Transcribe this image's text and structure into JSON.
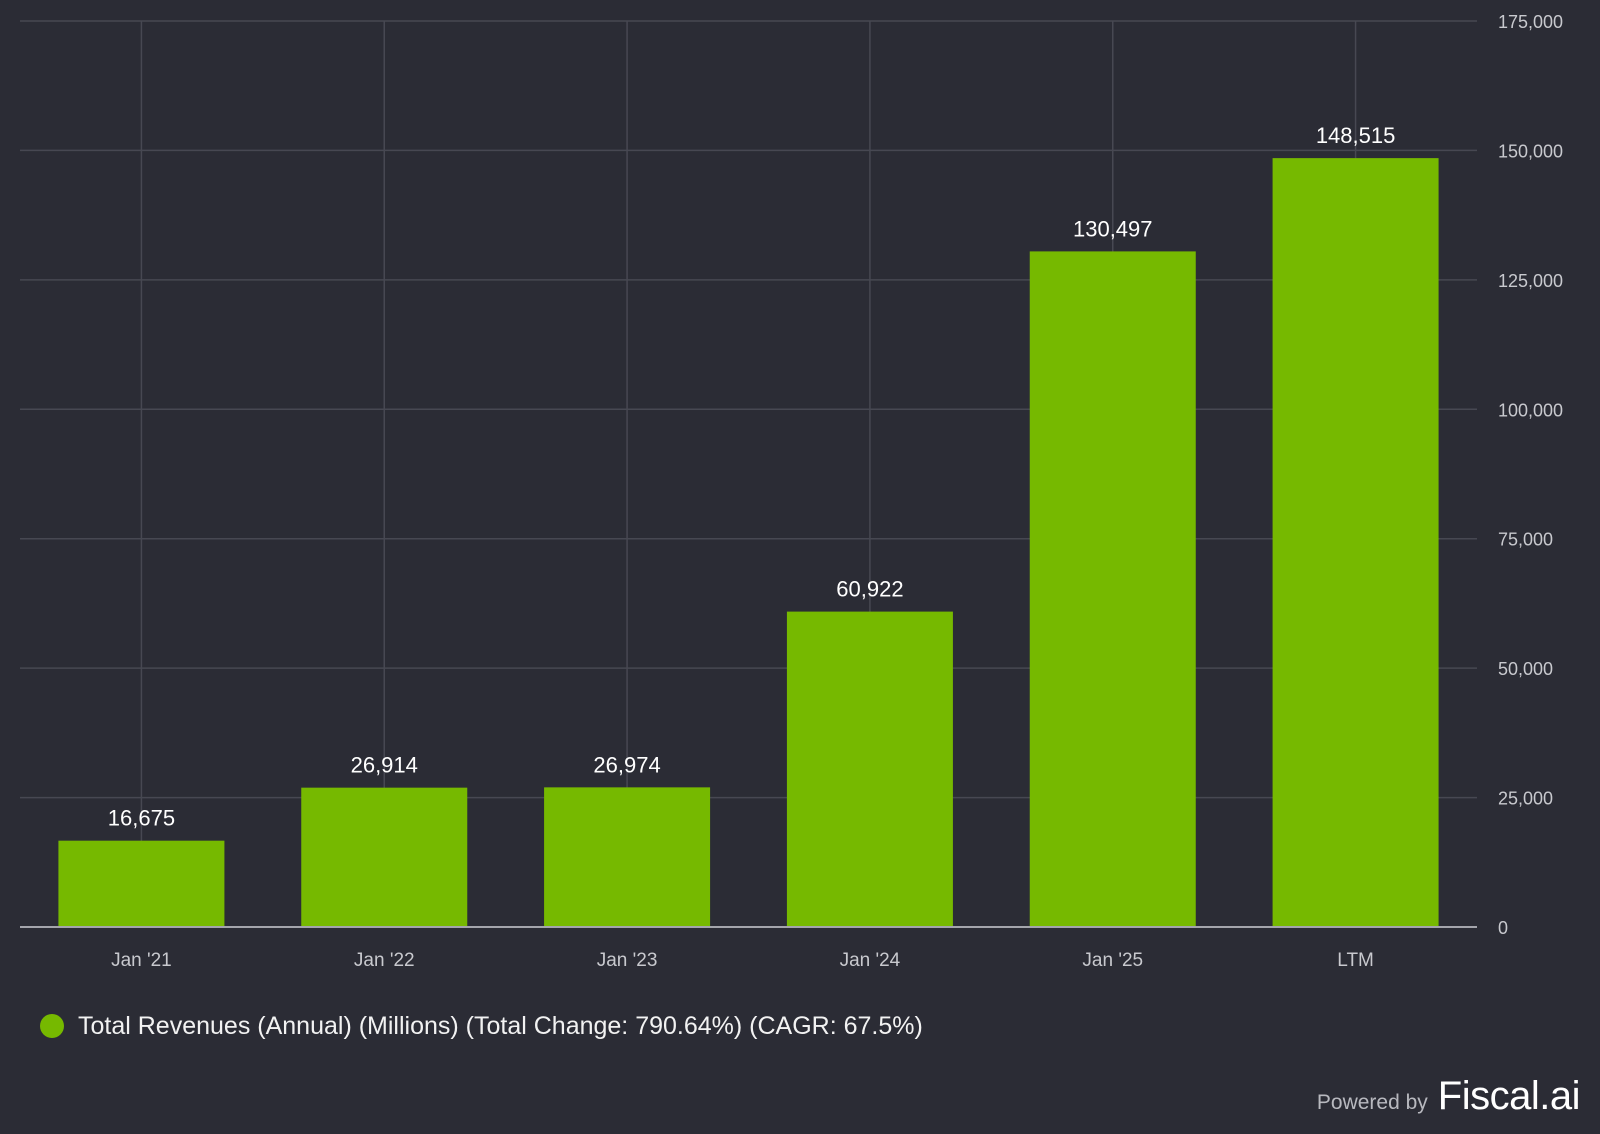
{
  "chart_data": {
    "type": "bar",
    "categories": [
      "Jan '21",
      "Jan '22",
      "Jan '23",
      "Jan '24",
      "Jan '25",
      "LTM"
    ],
    "values": [
      16675,
      26914,
      26974,
      60922,
      130497,
      148515
    ],
    "data_labels": [
      "16,675",
      "26,914",
      "26,974",
      "60,922",
      "130,497",
      "148,515"
    ],
    "yticks": [
      0,
      25000,
      50000,
      75000,
      100000,
      125000,
      150000,
      175000
    ],
    "ytick_labels": [
      "0",
      "25,000",
      "50,000",
      "75,000",
      "100,000",
      "125,000",
      "150,000",
      "175,000"
    ],
    "ylim": [
      0,
      175000
    ],
    "y_axis_side": "right",
    "grid": true,
    "xlabel": "",
    "ylabel": "",
    "series_name": "Total Revenues (Annual) (Millions) (Total Change: 790.64%) (CAGR: 67.5%)",
    "legend_position": "bottom-left"
  },
  "legend": {
    "label": "Total Revenues (Annual) (Millions) (Total Change: 790.64%) (CAGR: 67.5%)"
  },
  "credit": {
    "prefix": "Powered by",
    "brand": "Fiscal.ai"
  },
  "colors": {
    "background": "#2b2c35",
    "bar": "#76b900",
    "grid": "#474852",
    "axis": "#a4a5ac",
    "tick_text": "#c8c9ce",
    "label_text": "#ffffff"
  }
}
